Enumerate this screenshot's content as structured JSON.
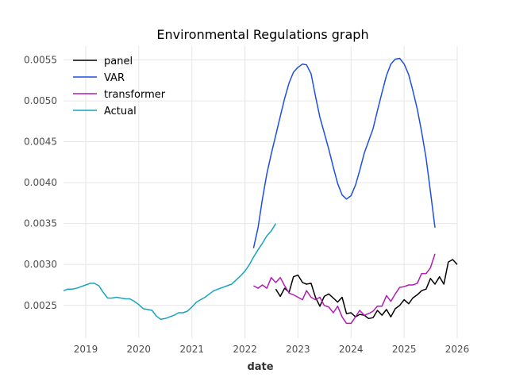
{
  "chart_data": {
    "type": "line",
    "title": "Environmental Regulations graph",
    "xlabel": "date",
    "ylabel": "",
    "xlim": [
      "2018-08-01",
      "2026-01-01"
    ],
    "ylim": [
      0.0021,
      0.00567
    ],
    "grid": true,
    "legend_position": "top-left",
    "x_ticks": [
      {
        "label": "2019",
        "date": "2019-01-01"
      },
      {
        "label": "2020",
        "date": "2020-01-01"
      },
      {
        "label": "2021",
        "date": "2021-01-01"
      },
      {
        "label": "2022",
        "date": "2022-01-01"
      },
      {
        "label": "2023",
        "date": "2023-01-01"
      },
      {
        "label": "2024",
        "date": "2024-01-01"
      },
      {
        "label": "2025",
        "date": "2025-01-01"
      },
      {
        "label": "2026",
        "date": "2026-01-01"
      }
    ],
    "y_ticks": [
      {
        "label": "0.0025",
        "value": 0.0025
      },
      {
        "label": "0.0030",
        "value": 0.003
      },
      {
        "label": "0.0035",
        "value": 0.0035
      },
      {
        "label": "0.0040",
        "value": 0.004
      },
      {
        "label": "0.0045",
        "value": 0.0045
      },
      {
        "label": "0.0050",
        "value": 0.005
      },
      {
        "label": "0.0055",
        "value": 0.0055
      }
    ],
    "series": [
      {
        "name": "panel",
        "color": "#000000",
        "points": [
          [
            "2022-08-01",
            0.0027
          ],
          [
            "2022-09-01",
            0.00261
          ],
          [
            "2022-10-01",
            0.00271
          ],
          [
            "2022-11-01",
            0.00266
          ],
          [
            "2022-12-01",
            0.00285
          ],
          [
            "2023-01-01",
            0.00287
          ],
          [
            "2023-02-01",
            0.00278
          ],
          [
            "2023-03-01",
            0.00276
          ],
          [
            "2023-04-01",
            0.00277
          ],
          [
            "2023-05-01",
            0.0026
          ],
          [
            "2023-06-01",
            0.00249
          ],
          [
            "2023-07-01",
            0.00261
          ],
          [
            "2023-08-01",
            0.00264
          ],
          [
            "2023-09-01",
            0.00259
          ],
          [
            "2023-10-01",
            0.00254
          ],
          [
            "2023-11-01",
            0.0026
          ],
          [
            "2023-12-01",
            0.0024
          ],
          [
            "2024-01-01",
            0.00241
          ],
          [
            "2024-02-01",
            0.00236
          ],
          [
            "2024-03-01",
            0.00239
          ],
          [
            "2024-04-01",
            0.00238
          ],
          [
            "2024-05-01",
            0.00234
          ],
          [
            "2024-06-01",
            0.00235
          ],
          [
            "2024-07-01",
            0.00244
          ],
          [
            "2024-08-01",
            0.00238
          ],
          [
            "2024-09-01",
            0.00245
          ],
          [
            "2024-10-01",
            0.00236
          ],
          [
            "2024-11-01",
            0.00246
          ],
          [
            "2024-12-01",
            0.0025
          ],
          [
            "2025-01-01",
            0.00257
          ],
          [
            "2025-02-01",
            0.00252
          ],
          [
            "2025-03-01",
            0.00259
          ],
          [
            "2025-04-01",
            0.00263
          ],
          [
            "2025-05-01",
            0.00268
          ],
          [
            "2025-06-01",
            0.0027
          ],
          [
            "2025-07-01",
            0.00283
          ],
          [
            "2025-08-01",
            0.00276
          ],
          [
            "2025-09-01",
            0.00285
          ],
          [
            "2025-10-01",
            0.00276
          ],
          [
            "2025-11-01",
            0.00303
          ],
          [
            "2025-12-01",
            0.00306
          ],
          [
            "2026-01-01",
            0.003
          ]
        ]
      },
      {
        "name": "VAR",
        "color": "#1f4fe0",
        "points": [
          [
            "2022-03-01",
            0.0032
          ],
          [
            "2022-04-01",
            0.00345
          ],
          [
            "2022-05-01",
            0.0038
          ],
          [
            "2022-06-01",
            0.00411
          ],
          [
            "2022-07-01",
            0.00435
          ],
          [
            "2022-08-01",
            0.00458
          ],
          [
            "2022-09-01",
            0.00481
          ],
          [
            "2022-10-01",
            0.00503
          ],
          [
            "2022-11-01",
            0.00522
          ],
          [
            "2022-12-01",
            0.00535
          ],
          [
            "2023-01-01",
            0.00541
          ],
          [
            "2023-02-01",
            0.00545
          ],
          [
            "2023-03-01",
            0.00544
          ],
          [
            "2023-04-01",
            0.00533
          ],
          [
            "2023-05-01",
            0.00506
          ],
          [
            "2023-06-01",
            0.0048
          ],
          [
            "2023-07-01",
            0.00461
          ],
          [
            "2023-08-01",
            0.00441
          ],
          [
            "2023-09-01",
            0.00419
          ],
          [
            "2023-10-01",
            0.00399
          ],
          [
            "2023-11-01",
            0.00385
          ],
          [
            "2023-12-01",
            0.0038
          ],
          [
            "2024-01-01",
            0.00384
          ],
          [
            "2024-02-01",
            0.00397
          ],
          [
            "2024-03-01",
            0.00415
          ],
          [
            "2024-04-01",
            0.00436
          ],
          [
            "2024-05-01",
            0.00451
          ],
          [
            "2024-06-01",
            0.00466
          ],
          [
            "2024-07-01",
            0.00488
          ],
          [
            "2024-08-01",
            0.0051
          ],
          [
            "2024-09-01",
            0.00531
          ],
          [
            "2024-10-01",
            0.00545
          ],
          [
            "2024-11-01",
            0.00551
          ],
          [
            "2024-12-01",
            0.00552
          ],
          [
            "2025-01-01",
            0.00545
          ],
          [
            "2025-02-01",
            0.00532
          ],
          [
            "2025-03-01",
            0.00513
          ],
          [
            "2025-04-01",
            0.0049
          ],
          [
            "2025-05-01",
            0.00462
          ],
          [
            "2025-06-01",
            0.0043
          ],
          [
            "2025-07-01",
            0.00389
          ],
          [
            "2025-08-01",
            0.00345
          ]
        ]
      },
      {
        "name": "transformer",
        "color": "#b31bb3",
        "points": [
          [
            "2022-03-01",
            0.00274
          ],
          [
            "2022-04-01",
            0.00271
          ],
          [
            "2022-05-01",
            0.00275
          ],
          [
            "2022-06-01",
            0.00271
          ],
          [
            "2022-07-01",
            0.00284
          ],
          [
            "2022-08-01",
            0.00278
          ],
          [
            "2022-09-01",
            0.00284
          ],
          [
            "2022-10-01",
            0.00274
          ],
          [
            "2022-11-01",
            0.00265
          ],
          [
            "2022-12-01",
            0.00263
          ],
          [
            "2023-01-01",
            0.0026
          ],
          [
            "2023-02-01",
            0.00257
          ],
          [
            "2023-03-01",
            0.00268
          ],
          [
            "2023-04-01",
            0.0026
          ],
          [
            "2023-05-01",
            0.00257
          ],
          [
            "2023-06-01",
            0.0026
          ],
          [
            "2023-07-01",
            0.0025
          ],
          [
            "2023-08-01",
            0.00248
          ],
          [
            "2023-09-01",
            0.00241
          ],
          [
            "2023-10-01",
            0.00249
          ],
          [
            "2023-11-01",
            0.00236
          ],
          [
            "2023-12-01",
            0.00228
          ],
          [
            "2024-01-01",
            0.00228
          ],
          [
            "2024-02-01",
            0.00236
          ],
          [
            "2024-03-01",
            0.00244
          ],
          [
            "2024-04-01",
            0.00238
          ],
          [
            "2024-05-01",
            0.0024
          ],
          [
            "2024-06-01",
            0.00243
          ],
          [
            "2024-07-01",
            0.00249
          ],
          [
            "2024-08-01",
            0.00249
          ],
          [
            "2024-09-01",
            0.00262
          ],
          [
            "2024-10-01",
            0.00255
          ],
          [
            "2024-11-01",
            0.00264
          ],
          [
            "2024-12-01",
            0.00272
          ],
          [
            "2025-01-01",
            0.00273
          ],
          [
            "2025-02-01",
            0.00275
          ],
          [
            "2025-03-01",
            0.00275
          ],
          [
            "2025-04-01",
            0.00277
          ],
          [
            "2025-05-01",
            0.00289
          ],
          [
            "2025-06-01",
            0.00289
          ],
          [
            "2025-07-01",
            0.00296
          ],
          [
            "2025-08-01",
            0.00313
          ]
        ]
      },
      {
        "name": "Actual",
        "color": "#17a3bf",
        "points": [
          [
            "2018-08-01",
            0.00268
          ],
          [
            "2018-09-01",
            0.0027
          ],
          [
            "2018-10-01",
            0.0027
          ],
          [
            "2018-11-01",
            0.00271
          ],
          [
            "2018-12-01",
            0.00273
          ],
          [
            "2019-01-01",
            0.00275
          ],
          [
            "2019-02-01",
            0.00277
          ],
          [
            "2019-03-01",
            0.00277
          ],
          [
            "2019-04-01",
            0.00274
          ],
          [
            "2019-05-01",
            0.00266
          ],
          [
            "2019-06-01",
            0.00259
          ],
          [
            "2019-07-01",
            0.00259
          ],
          [
            "2019-08-01",
            0.0026
          ],
          [
            "2019-09-01",
            0.00259
          ],
          [
            "2019-10-01",
            0.00258
          ],
          [
            "2019-11-01",
            0.00258
          ],
          [
            "2019-12-01",
            0.00255
          ],
          [
            "2020-01-01",
            0.00251
          ],
          [
            "2020-02-01",
            0.00246
          ],
          [
            "2020-03-01",
            0.00245
          ],
          [
            "2020-04-01",
            0.00244
          ],
          [
            "2020-05-01",
            0.00237
          ],
          [
            "2020-06-01",
            0.00233
          ],
          [
            "2020-07-01",
            0.00234
          ],
          [
            "2020-08-01",
            0.00236
          ],
          [
            "2020-09-01",
            0.00238
          ],
          [
            "2020-10-01",
            0.00241
          ],
          [
            "2020-11-01",
            0.00241
          ],
          [
            "2020-12-01",
            0.00243
          ],
          [
            "2021-01-01",
            0.00248
          ],
          [
            "2021-02-01",
            0.00254
          ],
          [
            "2021-03-01",
            0.00257
          ],
          [
            "2021-04-01",
            0.0026
          ],
          [
            "2021-05-01",
            0.00264
          ],
          [
            "2021-06-01",
            0.00268
          ],
          [
            "2021-07-01",
            0.0027
          ],
          [
            "2021-08-01",
            0.00272
          ],
          [
            "2021-09-01",
            0.00274
          ],
          [
            "2021-10-01",
            0.00276
          ],
          [
            "2021-11-01",
            0.00281
          ],
          [
            "2021-12-01",
            0.00286
          ],
          [
            "2022-01-01",
            0.00292
          ],
          [
            "2022-02-01",
            0.003
          ],
          [
            "2022-03-01",
            0.00309
          ],
          [
            "2022-04-01",
            0.00318
          ],
          [
            "2022-05-01",
            0.00326
          ],
          [
            "2022-06-01",
            0.00335
          ],
          [
            "2022-07-01",
            0.00341
          ],
          [
            "2022-08-01",
            0.0035
          ]
        ]
      }
    ]
  }
}
